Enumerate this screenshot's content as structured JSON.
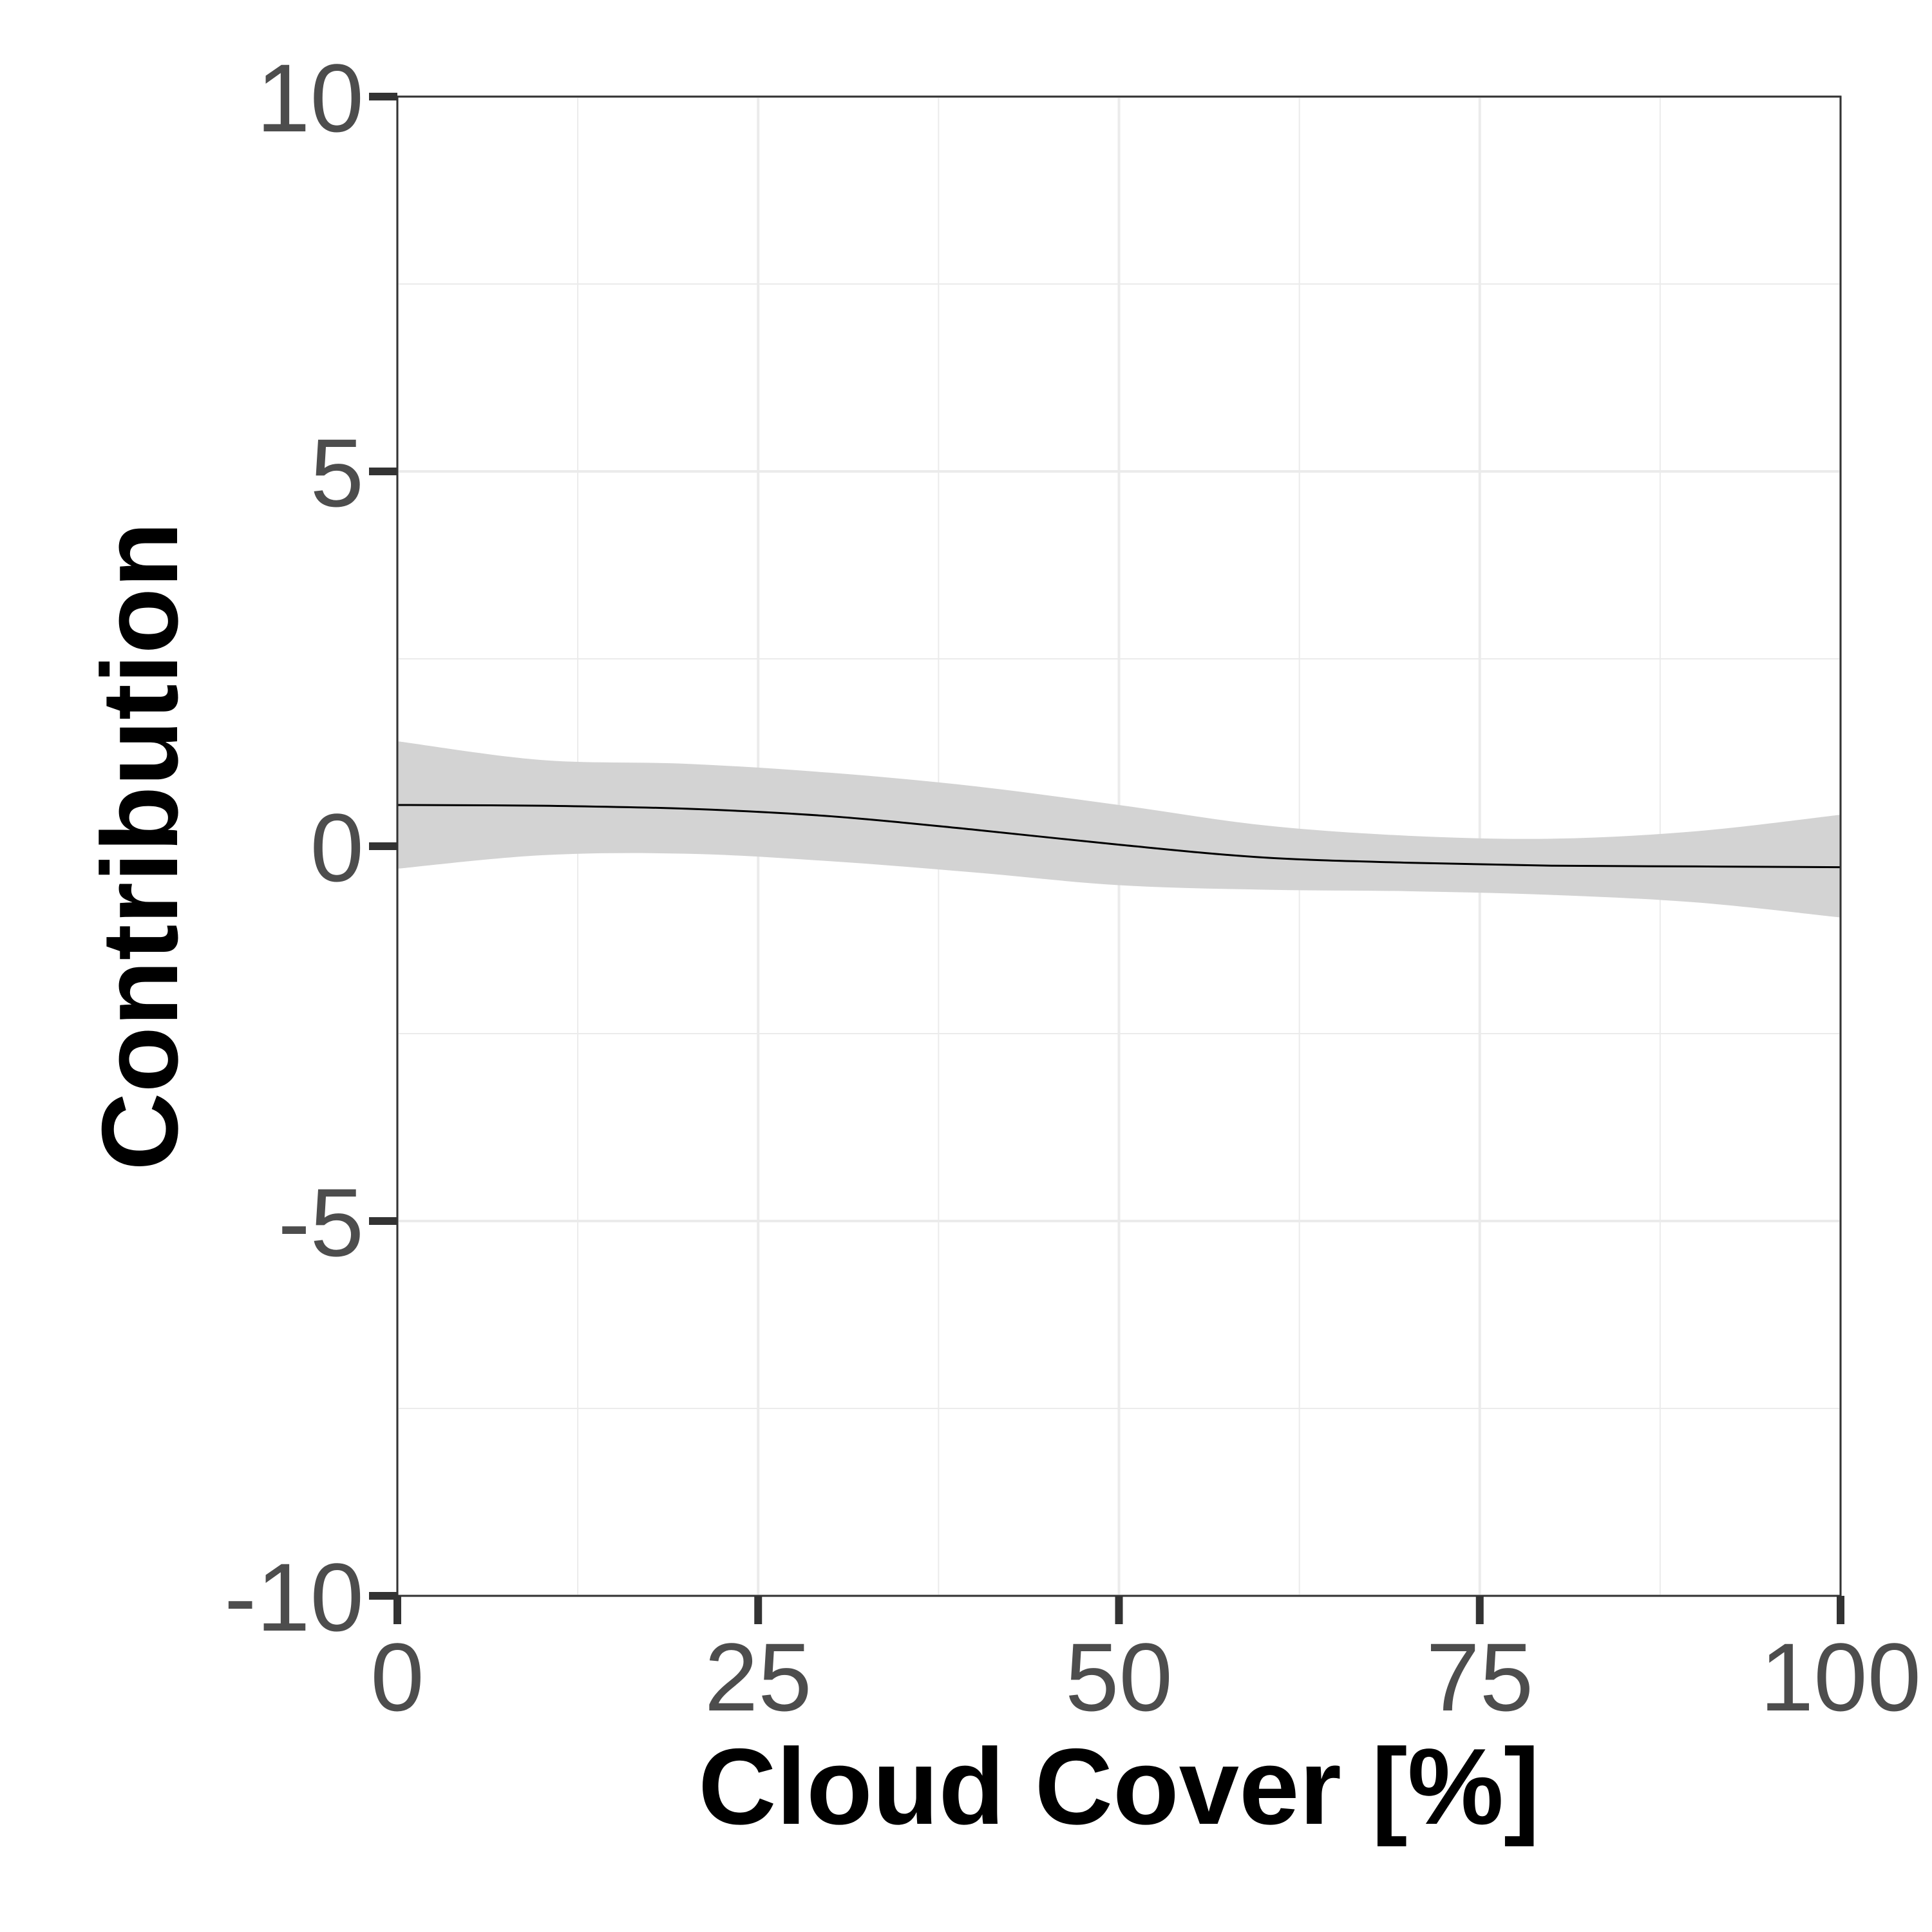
{
  "chart_data": {
    "type": "line",
    "title": "",
    "xlabel": "Cloud Cover [%]",
    "ylabel": "Contribution",
    "xlim": [
      0,
      100
    ],
    "ylim": [
      -10,
      10
    ],
    "x_ticks": [
      0,
      25,
      50,
      75,
      100
    ],
    "y_ticks": [
      -10,
      -5,
      0,
      5,
      10
    ],
    "grid": true,
    "legend": "none",
    "series": [
      {
        "values_x": [
          0,
          10,
          20,
          30,
          40,
          50,
          60,
          70,
          80,
          90,
          100
        ],
        "values_y": [
          0.55,
          0.54,
          0.5,
          0.4,
          0.22,
          0.02,
          -0.15,
          -0.22,
          -0.26,
          -0.27,
          -0.28
        ],
        "lower": [
          -0.3,
          -0.12,
          -0.1,
          -0.2,
          -0.35,
          -0.52,
          -0.58,
          -0.6,
          -0.65,
          -0.75,
          -0.95
        ],
        "upper": [
          1.4,
          1.15,
          1.1,
          0.98,
          0.8,
          0.55,
          0.28,
          0.14,
          0.1,
          0.2,
          0.42
        ]
      }
    ],
    "colors": {
      "line": "#000000",
      "band": "#d3d3d3",
      "grid": "#ebebeb",
      "axis": "#333333",
      "tick_label": "#4d4d4d"
    }
  }
}
